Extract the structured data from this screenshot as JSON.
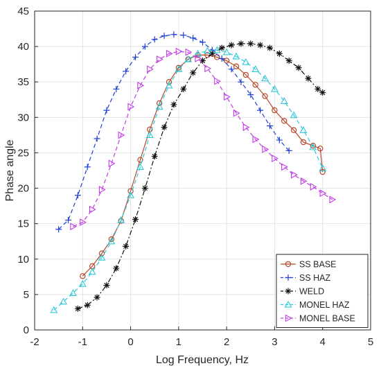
{
  "chart_data": {
    "type": "line",
    "xlabel": "Log Frequency, Hz",
    "ylabel": "Phase angle",
    "xlim": [
      -2,
      5
    ],
    "ylim": [
      0,
      45
    ],
    "xticks": [
      "-2",
      "-1",
      "0",
      "1",
      "2",
      "3",
      "4",
      "5"
    ],
    "yticks": [
      "0",
      "5",
      "10",
      "15",
      "20",
      "25",
      "30",
      "35",
      "40",
      "45"
    ],
    "grid": true,
    "legend_position": "bottom-right",
    "series": [
      {
        "name": "SS BASE",
        "color": "#b5482a",
        "line_style": "solid",
        "marker": "circle",
        "x": [
          -1.0,
          -0.8,
          -0.6,
          -0.4,
          -0.2,
          0.0,
          0.2,
          0.4,
          0.6,
          0.8,
          1.0,
          1.2,
          1.4,
          1.6,
          1.8,
          2.0,
          2.2,
          2.4,
          2.6,
          2.8,
          3.0,
          3.2,
          3.4,
          3.6,
          3.8,
          3.95,
          4.0
        ],
        "y": [
          7.6,
          9.0,
          10.8,
          12.8,
          15.4,
          19.6,
          24.0,
          28.3,
          32.0,
          35.0,
          37.0,
          38.2,
          38.8,
          38.8,
          38.5,
          38.0,
          37.2,
          36.0,
          34.6,
          33.0,
          31.0,
          29.5,
          28.2,
          26.5,
          26.0,
          25.6,
          22.3
        ]
      },
      {
        "name": "SS HAZ",
        "color": "#1f3fd6",
        "line_style": "dashed",
        "marker": "plus",
        "x": [
          -1.5,
          -1.3,
          -1.1,
          -0.9,
          -0.7,
          -0.5,
          -0.3,
          -0.1,
          0.1,
          0.3,
          0.5,
          0.7,
          0.9,
          1.1,
          1.3,
          1.5,
          1.7,
          1.9,
          2.1,
          2.3,
          2.5,
          2.7,
          2.9,
          3.1,
          3.3
        ],
        "y": [
          14.2,
          15.5,
          19.0,
          23.0,
          27.0,
          31.0,
          34.0,
          36.5,
          38.5,
          40.0,
          41.0,
          41.5,
          41.7,
          41.6,
          41.2,
          40.6,
          39.5,
          38.3,
          36.8,
          35.0,
          33.2,
          31.0,
          28.8,
          26.8,
          25.3
        ]
      },
      {
        "name": "WELD",
        "color": "#111111",
        "line_style": "dashdot",
        "marker": "asterisk",
        "x": [
          -1.1,
          -0.9,
          -0.7,
          -0.5,
          -0.3,
          -0.1,
          0.1,
          0.3,
          0.5,
          0.7,
          0.9,
          1.1,
          1.3,
          1.5,
          1.7,
          1.9,
          2.1,
          2.3,
          2.5,
          2.7,
          2.9,
          3.1,
          3.3,
          3.5,
          3.7,
          3.9,
          4.0
        ],
        "y": [
          3.0,
          3.5,
          4.6,
          6.3,
          8.7,
          11.8,
          15.6,
          20.0,
          24.5,
          28.6,
          31.8,
          34.0,
          36.3,
          38.0,
          39.0,
          39.8,
          40.2,
          40.4,
          40.4,
          40.2,
          39.8,
          39.0,
          38.0,
          37.0,
          35.5,
          34.0,
          33.5
        ]
      },
      {
        "name": "MONEL HAZ",
        "color": "#2ec8d8",
        "line_style": "dashed",
        "marker": "triangle-up",
        "x": [
          -1.6,
          -1.4,
          -1.2,
          -1.0,
          -0.8,
          -0.6,
          -0.4,
          -0.2,
          0.0,
          0.2,
          0.4,
          0.6,
          0.8,
          1.0,
          1.2,
          1.4,
          1.6,
          1.8,
          2.0,
          2.2,
          2.4,
          2.6,
          2.8,
          3.0,
          3.2,
          3.4,
          3.6,
          3.8,
          4.0
        ],
        "y": [
          2.8,
          4.0,
          5.2,
          6.5,
          8.2,
          10.2,
          12.5,
          15.5,
          19.0,
          23.0,
          27.5,
          31.5,
          34.5,
          36.8,
          38.2,
          39.0,
          39.4,
          39.5,
          39.2,
          38.6,
          37.8,
          36.8,
          35.5,
          34.0,
          32.3,
          30.3,
          28.2,
          25.8,
          22.8
        ]
      },
      {
        "name": "MONEL BASE",
        "color": "#c13be6",
        "line_style": "dashed",
        "marker": "triangle-right",
        "x": [
          -1.2,
          -1.0,
          -0.8,
          -0.6,
          -0.4,
          -0.2,
          0.0,
          0.2,
          0.4,
          0.6,
          0.8,
          1.0,
          1.2,
          1.4,
          1.6,
          1.8,
          2.0,
          2.2,
          2.4,
          2.6,
          2.8,
          3.0,
          3.2,
          3.4,
          3.6,
          3.8,
          4.0,
          4.2
        ],
        "y": [
          14.6,
          15.2,
          17.0,
          19.8,
          23.5,
          27.5,
          31.5,
          34.5,
          36.8,
          38.2,
          39.0,
          39.3,
          39.2,
          38.3,
          36.9,
          35.1,
          32.9,
          30.6,
          28.6,
          26.9,
          25.5,
          24.2,
          23.0,
          21.9,
          21.0,
          20.2,
          19.3,
          18.4
        ]
      }
    ]
  }
}
